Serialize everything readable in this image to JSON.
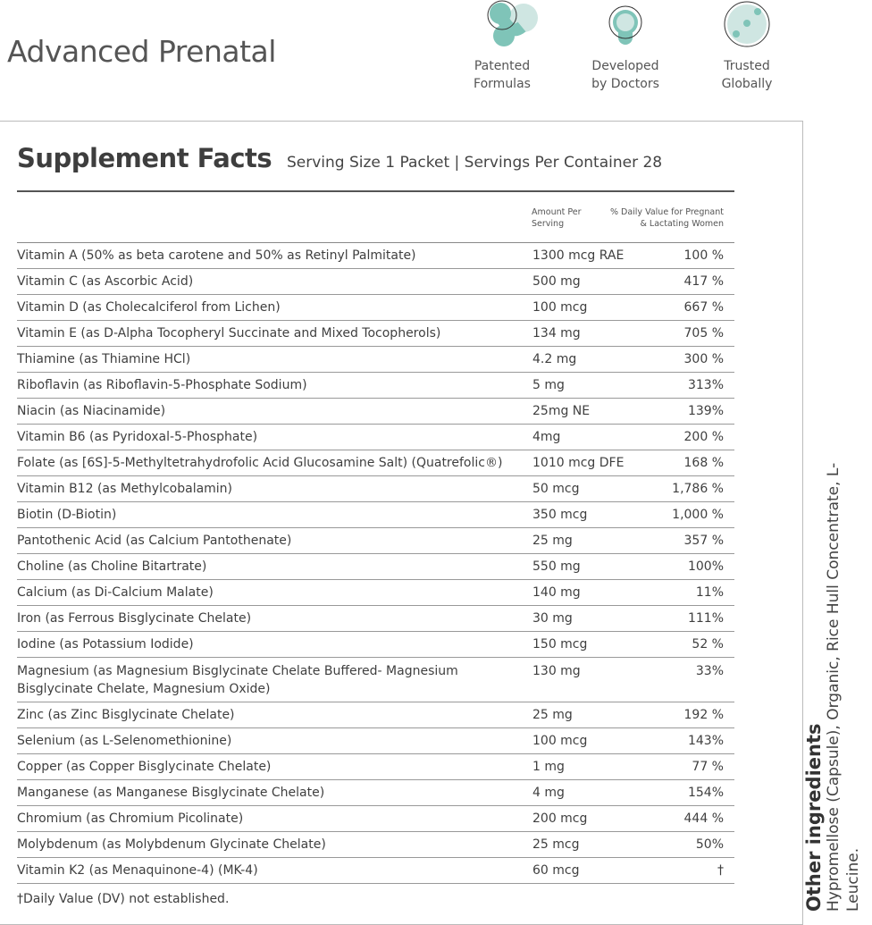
{
  "title": "Advanced Prenatal",
  "badges": [
    {
      "icon": "patented-formulas-icon",
      "line1": "Patented",
      "line2": "Formulas"
    },
    {
      "icon": "developed-by-doctors-icon",
      "line1": "Developed",
      "line2": "by Doctors"
    },
    {
      "icon": "trusted-globally-icon",
      "line1": "Trusted",
      "line2": "Globally"
    }
  ],
  "colors": {
    "accent": "#7fc4b8",
    "accent_light": "#cfe6e2"
  },
  "facts": {
    "heading": "Supplement Facts",
    "serving": "Serving Size 1 Packet | Servings Per Container 28",
    "col_amount": "Amount Per Serving",
    "col_dv": "% Daily Value for Pregnant & Lactating Women",
    "rows": [
      {
        "name": "Vitamin A (50% as beta carotene and 50% as Retinyl Palmitate)",
        "amount": "1300 mcg RAE",
        "dv": "100 %"
      },
      {
        "name": "Vitamin C (as Ascorbic Acid)",
        "amount": "500 mg",
        "dv": "417 %"
      },
      {
        "name": "Vitamin D (as Cholecalciferol from Lichen)",
        "amount": "100 mcg",
        "dv": "667 %"
      },
      {
        "name": "Vitamin E (as D-Alpha Tocopheryl Succinate and Mixed Tocopherols)",
        "amount": "134 mg",
        "dv": "705 %"
      },
      {
        "name": "Thiamine (as Thiamine HCl)",
        "amount": "4.2 mg",
        "dv": "300 %"
      },
      {
        "name": "Riboflavin (as Riboflavin-5-Phosphate Sodium)",
        "amount": "5 mg",
        "dv": "313%"
      },
      {
        "name": "Niacin (as Niacinamide)",
        "amount": "25mg NE",
        "dv": "139%"
      },
      {
        "name": "Vitamin B6 (as Pyridoxal-5-Phosphate)",
        "amount": "4mg",
        "dv": "200 %"
      },
      {
        "name": "Folate (as [6S]-5-Methyltetrahydrofolic Acid Glucosamine Salt) (Quatrefolic®)",
        "amount": "1010 mcg DFE",
        "dv": "168 %"
      },
      {
        "name": "Vitamin B12 (as Methylcobalamin)",
        "amount": "50 mcg",
        "dv": "1,786 %"
      },
      {
        "name": "Biotin (D-Biotin)",
        "amount": "350 mcg",
        "dv": "1,000 %"
      },
      {
        "name": "Pantothenic Acid (as Calcium Pantothenate)",
        "amount": "25 mg",
        "dv": "357 %"
      },
      {
        "name": "Choline (as Choline Bitartrate)",
        "amount": "550 mg",
        "dv": "100%"
      },
      {
        "name": "Calcium (as Di-Calcium Malate)",
        "amount": "140 mg",
        "dv": "11%"
      },
      {
        "name": "Iron (as Ferrous Bisglycinate Chelate)",
        "amount": "30 mg",
        "dv": "111%"
      },
      {
        "name": "Iodine (as Potassium Iodide)",
        "amount": "150 mcg",
        "dv": "52 %"
      },
      {
        "name": "Magnesium (as Magnesium Bisglycinate Chelate Buffered- Magnesium Bisglycinate Chelate, Magnesium Oxide)",
        "amount": "130 mg",
        "dv": "33%"
      },
      {
        "name": "Zinc (as Zinc Bisglycinate Chelate)",
        "amount": "25 mg",
        "dv": "192 %"
      },
      {
        "name": "Selenium (as L-Selenomethionine)",
        "amount": "100 mcg",
        "dv": "143%"
      },
      {
        "name": "Copper (as Copper Bisglycinate Chelate)",
        "amount": "1 mg",
        "dv": "77 %"
      },
      {
        "name": "Manganese (as Manganese Bisglycinate Chelate)",
        "amount": "4 mg",
        "dv": "154%"
      },
      {
        "name": "Chromium (as Chromium Picolinate)",
        "amount": "200 mcg",
        "dv": "444 %"
      },
      {
        "name": "Molybdenum (as Molybdenum Glycinate Chelate)",
        "amount": "25 mcg",
        "dv": "50%"
      },
      {
        "name": "Vitamin K2 (as Menaquinone-4) (MK-4)",
        "amount": "60 mcg",
        "dv": "†"
      }
    ],
    "footnote": "†Daily Value (DV) not established."
  },
  "other": {
    "heading": "Other ingredients",
    "text": "Hypromellose (Capsule), Organic, Rice Hull Concentrate, L-Leucine."
  }
}
